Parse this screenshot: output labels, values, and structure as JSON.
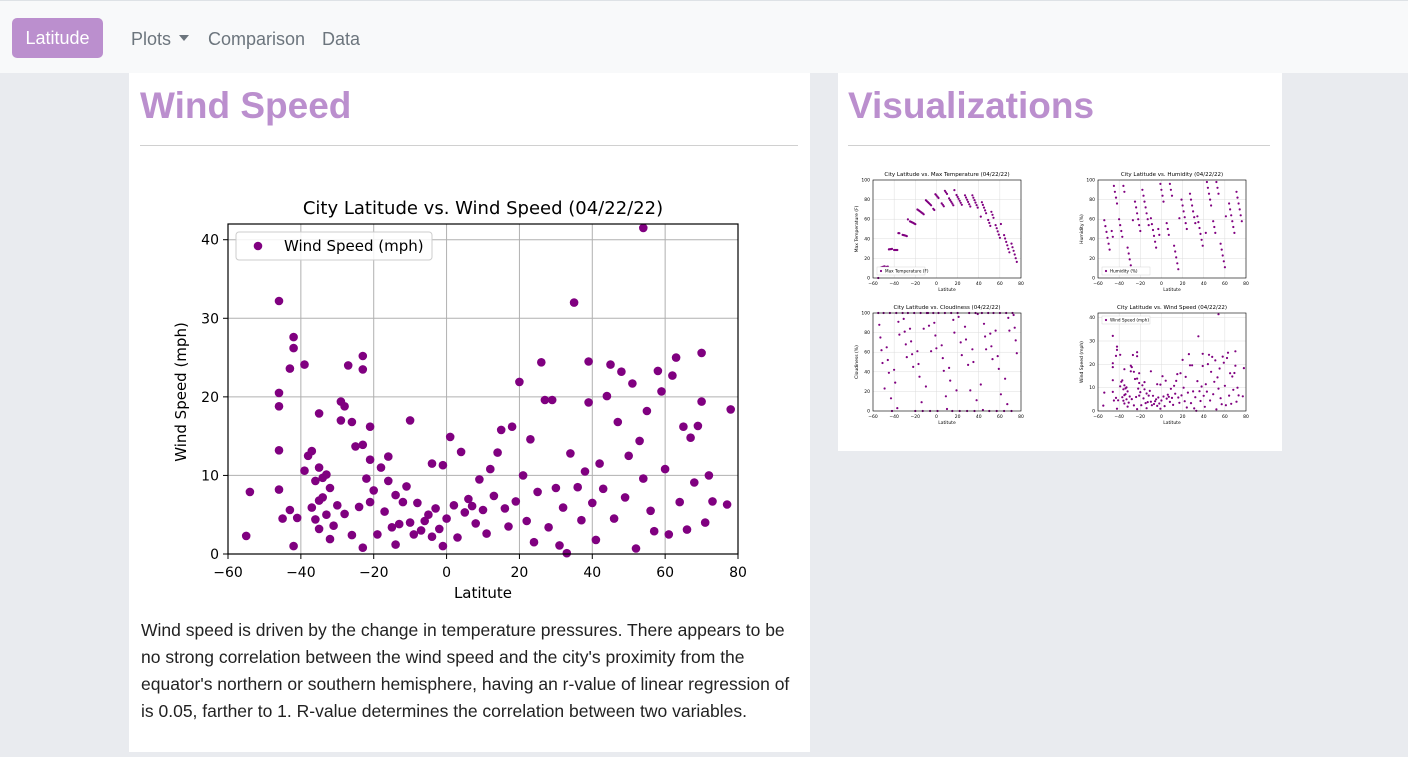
{
  "navbar": {
    "brand": "Latitude",
    "items": [
      "Plots",
      "Comparison",
      "Data"
    ]
  },
  "main": {
    "heading": "Wind Speed",
    "description": "Wind speed is driven by the change in temperature pressures. There appears to be no strong correlation between the wind speed and the city's proximity from the equator's northern or southern hemisphere, having an r-value of linear regression of is 0.05, farther to 1. R-value determines the correlation between two variables."
  },
  "sidebar": {
    "heading": "Visualizations",
    "thumbnails": [
      {
        "title": "City Latitude vs. Max Temperature (04/22/22)",
        "ylabel": "Max Temperature (F)",
        "legend": "Max Temperature (F)"
      },
      {
        "title": "City Latitude vs. Humidity (04/22/22)",
        "ylabel": "Humidity (%)",
        "legend": "Humidity (%)"
      },
      {
        "title": "City Latitude vs. Cloudiness (04/22/22)",
        "ylabel": "Cloudiness (%)",
        "legend": ""
      },
      {
        "title": "City Latitude vs. Wind Speed (04/22/22)",
        "ylabel": "Wind Speed (mph)",
        "legend": "Wind Speed (mph)"
      }
    ]
  },
  "colors": {
    "accent": "#bb8fce",
    "marker": "#800080"
  },
  "chart_data": {
    "type": "scatter",
    "title": "City Latitude vs. Wind Speed (04/22/22)",
    "xlabel": "Latitute",
    "ylabel": "Wind Speed (mph)",
    "legend": "Wind Speed (mph)",
    "legend_position": "top-left",
    "grid": true,
    "xlim": [
      -60,
      80
    ],
    "ylim": [
      0,
      42
    ],
    "xticks": [
      -60,
      -40,
      -20,
      0,
      20,
      40,
      60,
      80
    ],
    "yticks": [
      0,
      10,
      20,
      30,
      40
    ],
    "series": [
      {
        "name": "Wind Speed (mph)",
        "points": [
          [
            -55,
            2.3
          ],
          [
            -54,
            7.9
          ],
          [
            -46,
            32.2
          ],
          [
            -46,
            20.5
          ],
          [
            -46,
            18.8
          ],
          [
            -46,
            13.2
          ],
          [
            -46,
            8.2
          ],
          [
            -45,
            4.5
          ],
          [
            -43,
            23.6
          ],
          [
            -43,
            5.6
          ],
          [
            -42,
            26.2
          ],
          [
            -42,
            27.6
          ],
          [
            -42,
            1.0
          ],
          [
            -41,
            4.6
          ],
          [
            -39,
            24.1
          ],
          [
            -39,
            10.6
          ],
          [
            -38,
            12.5
          ],
          [
            -37,
            13.1
          ],
          [
            -37,
            5.9
          ],
          [
            -36,
            9.3
          ],
          [
            -36,
            4.4
          ],
          [
            -35,
            17.9
          ],
          [
            -35,
            11.0
          ],
          [
            -35,
            6.8
          ],
          [
            -35,
            3.2
          ],
          [
            -34,
            9.7
          ],
          [
            -34,
            7.2
          ],
          [
            -33,
            10.1
          ],
          [
            -33,
            5.0
          ],
          [
            -32,
            8.4
          ],
          [
            -32,
            1.9
          ],
          [
            -31,
            3.6
          ],
          [
            -30,
            6.2
          ],
          [
            -29,
            19.4
          ],
          [
            -29,
            17.0
          ],
          [
            -28,
            18.8
          ],
          [
            -28,
            5.1
          ],
          [
            -27,
            24.0
          ],
          [
            -26,
            16.8
          ],
          [
            -26,
            2.4
          ],
          [
            -25,
            13.7
          ],
          [
            -24,
            6.0
          ],
          [
            -23,
            25.2
          ],
          [
            -23,
            23.5
          ],
          [
            -23,
            13.9
          ],
          [
            -23,
            0.8
          ],
          [
            -22,
            9.6
          ],
          [
            -21,
            16.2
          ],
          [
            -21,
            12.0
          ],
          [
            -21,
            6.6
          ],
          [
            -20,
            8.1
          ],
          [
            -19,
            2.5
          ],
          [
            -18,
            11.0
          ],
          [
            -17,
            5.4
          ],
          [
            -16,
            9.3
          ],
          [
            -16,
            12.4
          ],
          [
            -15,
            3.4
          ],
          [
            -14,
            7.5
          ],
          [
            -14,
            1.2
          ],
          [
            -13,
            3.8
          ],
          [
            -12,
            6.6
          ],
          [
            -11,
            8.6
          ],
          [
            -10,
            17.0
          ],
          [
            -10,
            4.0
          ],
          [
            -9,
            2.5
          ],
          [
            -8,
            6.5
          ],
          [
            -7,
            3.0
          ],
          [
            -6,
            4.2
          ],
          [
            -5,
            5.0
          ],
          [
            -4,
            11.5
          ],
          [
            -4,
            2.2
          ],
          [
            -3,
            5.8
          ],
          [
            -2,
            3.2
          ],
          [
            -1,
            11.3
          ],
          [
            -1,
            1.0
          ],
          [
            0,
            4.5
          ],
          [
            1,
            14.9
          ],
          [
            2,
            6.2
          ],
          [
            3,
            2.1
          ],
          [
            4,
            13.0
          ],
          [
            5,
            5.3
          ],
          [
            6,
            7.0
          ],
          [
            7,
            6.1
          ],
          [
            8,
            3.9
          ],
          [
            9,
            9.5
          ],
          [
            10,
            5.6
          ],
          [
            11,
            2.6
          ],
          [
            12,
            10.8
          ],
          [
            13,
            7.4
          ],
          [
            14,
            12.9
          ],
          [
            15,
            15.8
          ],
          [
            16,
            5.8
          ],
          [
            17,
            3.5
          ],
          [
            18,
            16.2
          ],
          [
            19,
            6.7
          ],
          [
            20,
            21.9
          ],
          [
            21,
            10.0
          ],
          [
            22,
            4.2
          ],
          [
            23,
            14.6
          ],
          [
            24,
            1.5
          ],
          [
            25,
            7.9
          ],
          [
            26,
            24.4
          ],
          [
            27,
            19.6
          ],
          [
            28,
            3.4
          ],
          [
            29,
            19.6
          ],
          [
            30,
            8.4
          ],
          [
            31,
            1.1
          ],
          [
            32,
            5.9
          ],
          [
            33,
            0.1
          ],
          [
            34,
            12.8
          ],
          [
            35,
            32.0
          ],
          [
            36,
            8.5
          ],
          [
            37,
            4.3
          ],
          [
            38,
            10.5
          ],
          [
            39,
            24.5
          ],
          [
            39,
            19.3
          ],
          [
            40,
            6.5
          ],
          [
            41,
            1.8
          ],
          [
            42,
            11.5
          ],
          [
            43,
            8.3
          ],
          [
            44,
            20.1
          ],
          [
            45,
            24.1
          ],
          [
            46,
            4.5
          ],
          [
            47,
            16.8
          ],
          [
            48,
            23.2
          ],
          [
            49,
            7.2
          ],
          [
            50,
            12.5
          ],
          [
            51,
            21.7
          ],
          [
            52,
            0.7
          ],
          [
            53,
            14.4
          ],
          [
            54,
            41.5
          ],
          [
            54,
            9.6
          ],
          [
            55,
            18.2
          ],
          [
            56,
            5.5
          ],
          [
            57,
            2.9
          ],
          [
            58,
            23.3
          ],
          [
            59,
            20.7
          ],
          [
            60,
            10.8
          ],
          [
            61,
            2.5
          ],
          [
            62,
            22.7
          ],
          [
            63,
            25.0
          ],
          [
            64,
            6.6
          ],
          [
            65,
            16.2
          ],
          [
            66,
            3.1
          ],
          [
            67,
            14.8
          ],
          [
            68,
            9.1
          ],
          [
            69,
            16.3
          ],
          [
            70,
            25.6
          ],
          [
            70,
            19.4
          ],
          [
            71,
            4.0
          ],
          [
            72,
            10.0
          ],
          [
            73,
            6.7
          ],
          [
            78,
            18.4
          ],
          [
            77,
            6.3
          ]
        ]
      }
    ]
  }
}
